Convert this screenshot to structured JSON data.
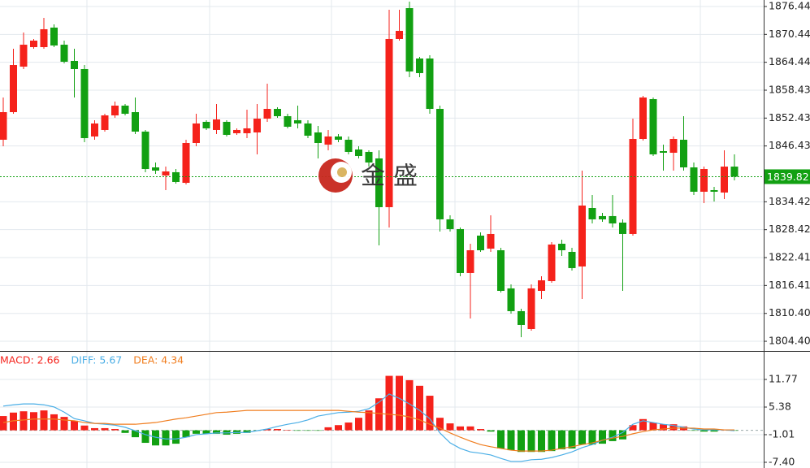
{
  "chart_data": [
    {
      "type": "candlestick",
      "open": [
        1847.77,
        1853.71,
        1863.5,
        1867.7,
        1867.7,
        1871.9,
        1868.22,
        1864.73,
        1862.98,
        1848.47,
        1849.87,
        1853.01,
        1855.11,
        1853.71,
        1849.52,
        1841.82,
        1840.08,
        1840.78,
        1838.5,
        1847.07,
        1851.62,
        1849.87,
        1851.62,
        1849.17,
        1849.17,
        1849.34,
        1852.31,
        1854.41,
        1852.84,
        1851.97,
        1851.27,
        1849.34,
        1846.72,
        1848.47,
        1847.77,
        1845.67,
        1845.15,
        1843.75,
        1833.26,
        1869.45,
        1876.09,
        1865.25,
        1865.25,
        1854.41,
        1830.64,
        1828.54,
        1819.1,
        1827.14,
        1824.34,
        1823.99,
        1815.78,
        1810.88,
        1807.03,
        1815.25,
        1817.35,
        1825.39,
        1823.64,
        1820.5,
        1833.08,
        1831.34,
        1831.34,
        1829.94,
        1827.49,
        1847.94,
        1856.51,
        1845.32,
        1844.97,
        1847.77,
        1841.82,
        1836.58,
        1836.93,
        1836.41,
        1841.99
      ],
      "high": [
        1856.86,
        1867.35,
        1870.85,
        1869.45,
        1873.99,
        1872.6,
        1869.1,
        1867.35,
        1863.85,
        1851.97,
        1853.36,
        1855.99,
        1855.46,
        1856.86,
        1849.87,
        1842.87,
        1841.99,
        1841.47,
        1847.77,
        1853.36,
        1851.97,
        1855.46,
        1851.97,
        1850.22,
        1854.24,
        1855.46,
        1859.83,
        1854.76,
        1853.36,
        1855.11,
        1851.97,
        1850.74,
        1849.87,
        1848.99,
        1848.47,
        1846.37,
        1845.5,
        1845.5,
        1875.74,
        1875.74,
        1877.5,
        1865.6,
        1865.95,
        1855.11,
        1831.51,
        1828.89,
        1825.39,
        1827.84,
        1831.51,
        1824.52,
        1816.65,
        1811.4,
        1816.65,
        1818.4,
        1825.74,
        1826.27,
        1824.52,
        1841.13,
        1835.88,
        1832.03,
        1835.88,
        1830.64,
        1852.31,
        1857.21,
        1856.86,
        1846.72,
        1848.47,
        1852.84,
        1842.87,
        1841.99,
        1837.63,
        1845.5,
        1844.62
      ],
      "low": [
        1846.37,
        1853.36,
        1862.98,
        1867.35,
        1867.35,
        1867.7,
        1864.2,
        1856.86,
        1847.24,
        1847.77,
        1849.52,
        1852.49,
        1853.01,
        1848.99,
        1840.78,
        1840.43,
        1836.93,
        1838.33,
        1838.15,
        1846.37,
        1849.87,
        1848.99,
        1848.47,
        1848.82,
        1848.12,
        1844.62,
        1851.62,
        1852.49,
        1850.22,
        1850.22,
        1848.12,
        1843.75,
        1845.5,
        1847.24,
        1844.62,
        1843.75,
        1841.99,
        1825.04,
        1828.89,
        1869.1,
        1861.23,
        1861.23,
        1853.36,
        1828.02,
        1828.02,
        1818.4,
        1809.31,
        1823.64,
        1823.64,
        1814.9,
        1810.36,
        1805.29,
        1806.68,
        1813.5,
        1817.0,
        1822.77,
        1819.62,
        1813.5,
        1829.76,
        1830.11,
        1828.89,
        1815.25,
        1827.14,
        1847.59,
        1844.27,
        1841.13,
        1841.13,
        1841.13,
        1835.88,
        1834.13,
        1834.48,
        1835.01,
        1839.03
      ],
      "close": [
        1853.71,
        1863.85,
        1868.22,
        1869.1,
        1871.55,
        1868.05,
        1864.55,
        1862.98,
        1848.12,
        1851.27,
        1853.01,
        1855.11,
        1853.36,
        1849.52,
        1841.47,
        1841.13,
        1840.95,
        1838.68,
        1847.07,
        1851.27,
        1850.22,
        1852.14,
        1848.82,
        1849.87,
        1850.22,
        1852.31,
        1854.41,
        1852.84,
        1850.57,
        1851.27,
        1848.64,
        1847.07,
        1848.47,
        1847.77,
        1845.15,
        1844.27,
        1842.87,
        1833.26,
        1869.45,
        1871.2,
        1862.46,
        1862.11,
        1854.41,
        1830.64,
        1828.54,
        1819.1,
        1823.99,
        1823.99,
        1827.49,
        1815.25,
        1810.88,
        1807.91,
        1815.78,
        1817.52,
        1825.22,
        1823.99,
        1820.15,
        1833.61,
        1830.64,
        1830.64,
        1829.76,
        1827.49,
        1847.94,
        1856.86,
        1844.62,
        1844.97,
        1847.94,
        1841.82,
        1836.58,
        1841.47,
        1836.58,
        1841.99,
        1839.82
      ],
      "up_color": "#f5221b",
      "down_color": "#12a012",
      "last_price": 1839.82,
      "watermark": "金盛",
      "ylim": [
        1802.31,
        1877.84
      ],
      "yticks": [
        1876.44,
        {
          "value": 1870.44,
          "label": "1870.44"
        },
        1864.44,
        1858.43,
        1852.43,
        1846.43,
        1834.42,
        1828.42,
        1822.41,
        1816.41,
        {
          "value": 1810.4,
          "label": "1810.40"
        },
        {
          "value": 1804.4,
          "label": "1804.40"
        }
      ],
      "grid": true
    },
    {
      "type": "macd",
      "series": [
        {
          "name": "MACD: 2.66",
          "color": "#f5221b",
          "negative_color": "#12a012",
          "values": [
            3.3,
            4.1,
            4.4,
            4.2,
            4.6,
            3.7,
            3.1,
            2.2,
            1.1,
            0.5,
            0.5,
            0.3,
            -0.6,
            -1.6,
            -2.9,
            -3.5,
            -3.5,
            -3.1,
            -1.6,
            -0.8,
            -0.8,
            -0.8,
            -1.0,
            -0.8,
            -0.6,
            -0.1,
            0.3,
            0.3,
            0.1,
            -0.1,
            -0.1,
            -0.1,
            0.7,
            1.2,
            1.8,
            2.9,
            4.6,
            7.4,
            12.6,
            12.6,
            11.6,
            10.3,
            8.0,
            2.9,
            1.6,
            0.9,
            0.9,
            0.3,
            -0.3,
            -4.2,
            -4.6,
            -5.0,
            -5.0,
            -5.0,
            -4.8,
            -4.4,
            -4.2,
            -3.3,
            -3.3,
            -3.1,
            -2.5,
            -2.1,
            1.2,
            2.6,
            1.8,
            1.4,
            1.4,
            0.9,
            -0.1,
            -0.3,
            -0.3,
            0.1,
            -0.1
          ]
        },
        {
          "name": "DIFF: 5.67",
          "color": "#4aaee6",
          "values": [
            5.6,
            5.9,
            6.1,
            6.1,
            5.9,
            5.4,
            4.2,
            2.7,
            2.2,
            1.6,
            1.4,
            1.2,
            0.7,
            -0.1,
            -1.0,
            -1.6,
            -2.0,
            -2.0,
            -1.6,
            -1.0,
            -0.8,
            -0.6,
            -0.6,
            -0.5,
            -0.5,
            -0.1,
            0.3,
            0.9,
            1.4,
            1.8,
            2.4,
            3.3,
            3.7,
            4.1,
            4.2,
            4.4,
            5.0,
            6.5,
            8.4,
            7.4,
            6.1,
            4.6,
            2.7,
            -0.6,
            -2.9,
            -4.2,
            -5.0,
            -5.3,
            -5.7,
            -6.5,
            -7.2,
            -7.2,
            -6.8,
            -6.7,
            -6.3,
            -5.7,
            -5.0,
            -4.0,
            -3.3,
            -2.3,
            -1.6,
            -0.5,
            1.4,
            2.2,
            1.8,
            1.4,
            1.1,
            0.7,
            0.3,
            0.1,
            0.1,
            0.1,
            -0.1
          ]
        },
        {
          "name": "DEA: 4.34",
          "color": "#f07d1e",
          "values": [
            1.8,
            2.2,
            2.4,
            2.6,
            2.6,
            2.6,
            2.4,
            2.2,
            1.8,
            1.6,
            1.6,
            1.4,
            1.4,
            1.4,
            1.6,
            1.8,
            2.2,
            2.6,
            2.9,
            3.3,
            3.7,
            4.1,
            4.2,
            4.4,
            4.6,
            4.6,
            4.6,
            4.6,
            4.6,
            4.6,
            4.6,
            4.6,
            4.6,
            4.6,
            4.4,
            4.2,
            4.1,
            3.9,
            3.7,
            3.5,
            3.1,
            2.4,
            1.4,
            0.5,
            -0.6,
            -1.6,
            -2.5,
            -3.3,
            -3.8,
            -4.2,
            -4.6,
            -4.8,
            -4.8,
            -4.8,
            -4.6,
            -4.2,
            -3.8,
            -3.3,
            -2.9,
            -2.3,
            -1.8,
            -1.4,
            -0.8,
            -0.3,
            0.1,
            0.3,
            0.5,
            0.5,
            0.5,
            0.3,
            0.3,
            0.1,
            0.1
          ]
        }
      ],
      "ylim": [
        -8.72,
        18.16
      ],
      "yticks": [
        11.77,
        5.38,
        -1.01,
        {
          "value": -7.4,
          "label": "-7.40"
        }
      ],
      "grid": true
    }
  ]
}
